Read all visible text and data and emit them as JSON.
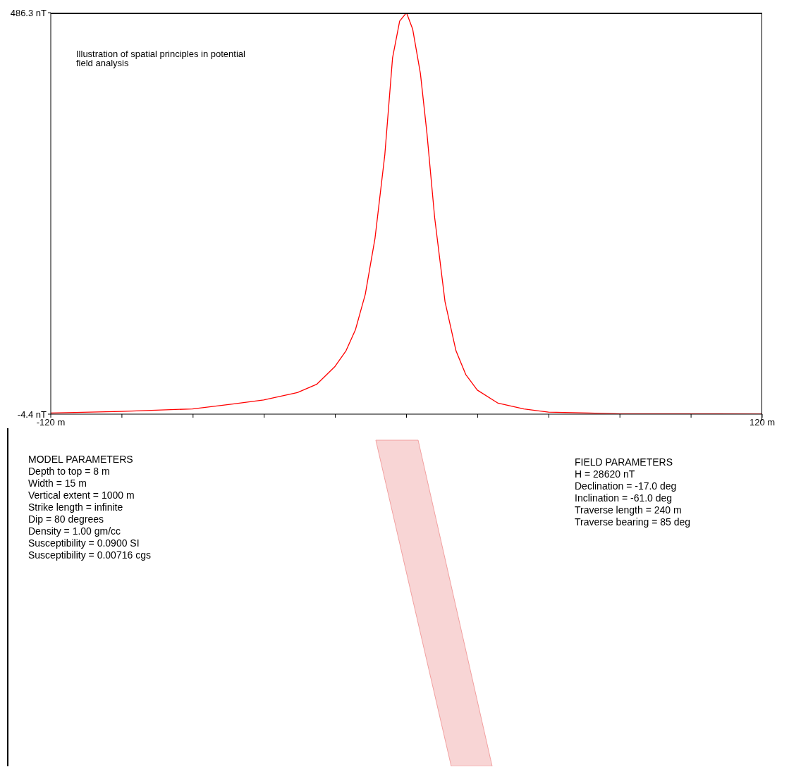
{
  "chart_data": {
    "type": "line",
    "title": "Illustration of spatial principles in potential field analysis",
    "x": [
      -120,
      -96,
      -72.2,
      -58.6,
      -48.2,
      -36.8,
      -30.3,
      -24.1,
      -20.4,
      -17.2,
      -13.9,
      -10.6,
      -7.3,
      -4.7,
      -2.3,
      0,
      2.1,
      4.7,
      6.9,
      9.5,
      13,
      16.7,
      20,
      23.9,
      30.9,
      39.6,
      47.9,
      61.4,
      72,
      96,
      120
    ],
    "series": [
      {
        "color": "#ff0000",
        "values": [
          -3,
          -1,
          2,
          8,
          13,
          22,
          32,
          54,
          73,
          99,
          142,
          211,
          313,
          431,
          476,
          486.3,
          466,
          412,
          339,
          236,
          133,
          73,
          44,
          25,
          9,
          2,
          -2,
          -3,
          -4,
          -4,
          -4.4
        ]
      }
    ],
    "xlim": [
      -120,
      120
    ],
    "xticks": [
      {
        "value": -120,
        "label": "-120 m"
      },
      {
        "value": -96,
        "label": null
      },
      {
        "value": -72,
        "label": null
      },
      {
        "value": -48,
        "label": null
      },
      {
        "value": -24,
        "label": null
      },
      {
        "value": 0,
        "label": null
      },
      {
        "value": 24,
        "label": null
      },
      {
        "value": 48,
        "label": null
      },
      {
        "value": 72,
        "label": null
      },
      {
        "value": 96,
        "label": null
      },
      {
        "value": 120,
        "label": "120 m"
      }
    ],
    "ylim": [
      -4.4,
      486.3
    ],
    "yticks": [
      {
        "value": -4.4,
        "label": "-4.4 nT"
      },
      {
        "value": 486.3,
        "label": "486.3 nT"
      }
    ],
    "grid": false,
    "marker": "none",
    "line_style": "solid",
    "annotations": [
      "MODEL PARAMETERS",
      "Depth to top = 8 m",
      "Width = 15 m",
      "Vertical extent = 1000 m",
      "Strike length = infinite",
      "Dip = 80 degrees",
      "Density = 1.00 gm/cc",
      "Susceptibility = 0.0900 SI",
      "Susceptibility = 0.00716 cgs",
      "FIELD PARAMETERS",
      "H = 28620 nT",
      "Declination = -17.0 deg",
      "Inclination = -61.0 deg",
      "Traverse length = 240 m",
      "Traverse bearing = 85 deg"
    ]
  }
}
